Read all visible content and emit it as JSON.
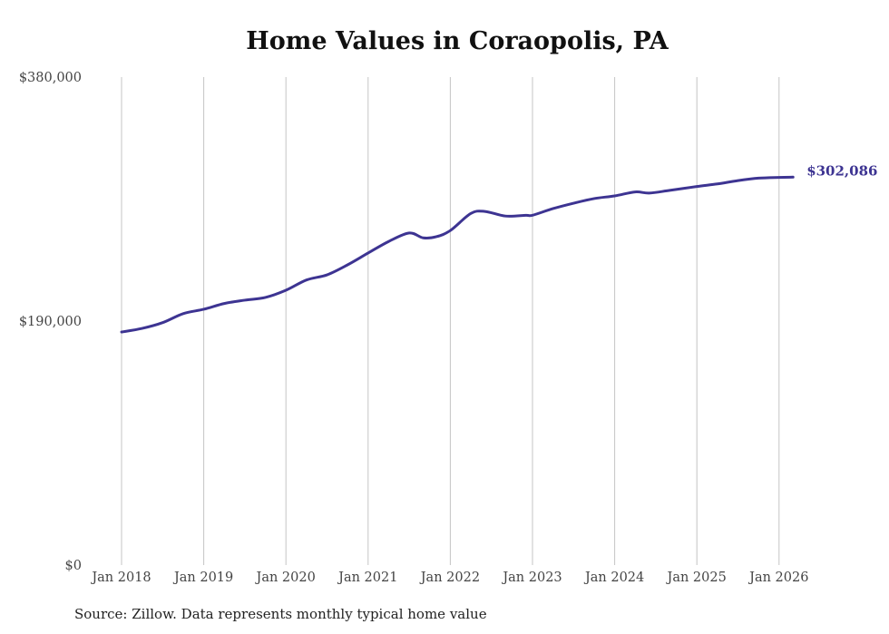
{
  "chart_data": {
    "type": "line",
    "title": "Home Values in Coraopolis, PA",
    "xlabel": "",
    "ylabel": "",
    "ylim": [
      0,
      380000
    ],
    "y_ticks": [
      "$0",
      "$190,000",
      "$380,000"
    ],
    "y_tick_values": [
      0,
      190000,
      380000
    ],
    "x_ticks": [
      "Jan 2018",
      "Jan 2019",
      "Jan 2020",
      "Jan 2021",
      "Jan 2022",
      "Jan 2023",
      "Jan 2024",
      "Jan 2025",
      "Jan 2026"
    ],
    "x_tick_values": [
      2018,
      2019,
      2020,
      2021,
      2022,
      2023,
      2024,
      2025,
      2026
    ],
    "grid": "vertical",
    "series": [
      {
        "name": "Typical home value",
        "color": "#3d3492",
        "x": [
          2018.0,
          2018.25,
          2018.5,
          2018.75,
          2019.0,
          2019.25,
          2019.5,
          2019.75,
          2020.0,
          2020.25,
          2020.5,
          2020.75,
          2021.0,
          2021.25,
          2021.5,
          2021.67,
          2021.83,
          2022.0,
          2022.25,
          2022.42,
          2022.67,
          2022.92,
          2023.0,
          2023.25,
          2023.5,
          2023.75,
          2024.0,
          2024.25,
          2024.42,
          2024.67,
          2025.0,
          2025.25,
          2025.5,
          2025.75,
          2026.0,
          2026.17
        ],
        "values": [
          181500,
          184300,
          188800,
          195800,
          199200,
          203700,
          206300,
          208400,
          214000,
          222000,
          226000,
          233800,
          243000,
          252000,
          258600,
          254800,
          255700,
          260500,
          273800,
          275400,
          271800,
          272400,
          272400,
          277600,
          281800,
          285400,
          287500,
          290600,
          289700,
          291800,
          294800,
          296800,
          299400,
          301300,
          301900,
          302086
        ]
      }
    ],
    "end_label": "$302,086",
    "source": "Source: Zillow. Data represents monthly typical home value"
  }
}
